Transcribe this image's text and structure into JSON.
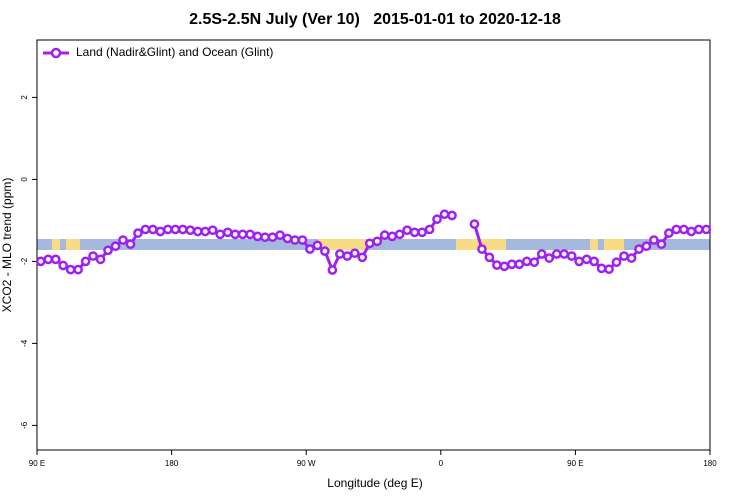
{
  "chart_data": {
    "type": "line",
    "title": "2.5S-2.5N July (Ver 10)   2015-01-01 to 2020-12-18",
    "xlabel": "Longitude (deg E)",
    "ylabel": "XCO2 - MLO trend (ppm)",
    "x": [
      92.5,
      97.5,
      102.5,
      107.5,
      112.5,
      117.5,
      122.5,
      127.5,
      132.5,
      137.5,
      142.5,
      147.5,
      152.5,
      157.5,
      162.5,
      167.5,
      172.5,
      177.5,
      182.5,
      187.5,
      192.5,
      197.5,
      202.5,
      207.5,
      212.5,
      217.5,
      222.5,
      227.5,
      232.5,
      237.5,
      242.5,
      247.5,
      252.5,
      257.5,
      262.5,
      267.5,
      272.5,
      277.5,
      282.5,
      287.5,
      292.5,
      297.5,
      302.5,
      307.5,
      312.5,
      317.5,
      322.5,
      327.5,
      332.5,
      337.5,
      342.5,
      347.5,
      352.5,
      357.5,
      362.5,
      367.5,
      372.5,
      377.5,
      382.5,
      387.5,
      392.5,
      397.5,
      402.5,
      407.5,
      412.5,
      417.5,
      422.5,
      427.5,
      432.5,
      437.5,
      442.5,
      447.5,
      452.5,
      457.5,
      462.5,
      467.5,
      472.5,
      477.5,
      482.5,
      487.5,
      492.5,
      497.5,
      502.5,
      507.5,
      512.5,
      517.5,
      522.5,
      527.5,
      532.5,
      537.5
    ],
    "series": [
      {
        "name": "Land (Nadir&Glint) and Ocean (Glint)",
        "color": "#a020f0",
        "values": [
          -2.0,
          -1.95,
          -1.95,
          -2.1,
          -2.2,
          -2.2,
          -2.0,
          -1.87,
          -1.95,
          -1.73,
          -1.63,
          -1.48,
          -1.58,
          -1.31,
          -1.22,
          -1.22,
          -1.27,
          -1.22,
          -1.22,
          -1.22,
          -1.24,
          -1.27,
          -1.27,
          -1.24,
          -1.34,
          -1.29,
          -1.34,
          -1.34,
          -1.34,
          -1.39,
          -1.41,
          -1.41,
          -1.36,
          -1.44,
          -1.48,
          -1.48,
          -1.7,
          -1.61,
          -1.75,
          -2.21,
          -1.82,
          -1.87,
          -1.8,
          -1.9,
          -1.56,
          -1.51,
          -1.36,
          -1.39,
          -1.34,
          -1.24,
          -1.29,
          -1.29,
          -1.22,
          -0.97,
          -0.85,
          -0.88,
          null,
          null,
          -1.09,
          -1.7,
          -1.9,
          -2.09,
          -2.12,
          -2.07,
          -2.07,
          -2.0,
          -2.02,
          -1.82,
          -1.92,
          -1.82,
          -1.82,
          -1.87,
          -2.0,
          -1.95,
          -2.0,
          -2.17,
          -2.19,
          -2.02,
          -1.87,
          -1.92,
          -1.7,
          -1.63,
          -1.48,
          -1.58,
          -1.31,
          -1.22,
          -1.22,
          -1.27,
          -1.22,
          -1.22
        ]
      }
    ],
    "xlim": [
      90,
      540
    ],
    "xticks": [
      {
        "value": 90,
        "label": "90 E"
      },
      {
        "value": 180,
        "label": "180"
      },
      {
        "value": 270,
        "label": "90 W"
      },
      {
        "value": 360,
        "label": "0"
      },
      {
        "value": 450,
        "label": "90 E"
      },
      {
        "value": 540,
        "label": "180"
      }
    ],
    "ylim": [
      -6.6,
      3.4
    ],
    "yticks": [
      2,
      0,
      -2,
      -4,
      -6
    ],
    "legend": "upper left"
  }
}
